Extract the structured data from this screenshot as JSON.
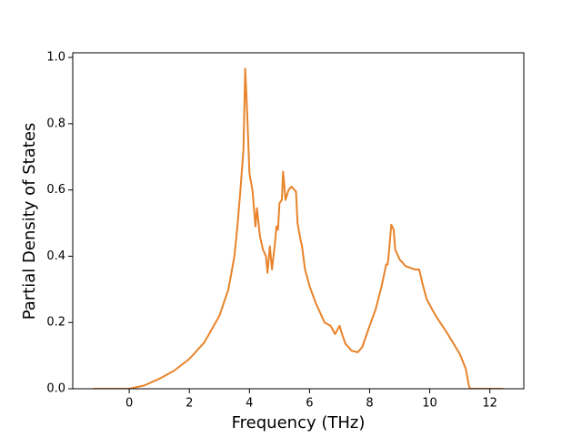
{
  "chart_data": {
    "type": "line",
    "xlabel": "Frequency (THz)",
    "ylabel": "Partial Density of States",
    "x": [
      -1.2,
      0,
      0.5,
      1,
      1.5,
      2,
      2.5,
      3,
      3.3,
      3.5,
      3.6,
      3.7,
      3.8,
      3.86,
      3.93,
      4.0,
      4.1,
      4.2,
      4.25,
      4.35,
      4.45,
      4.55,
      4.6,
      4.68,
      4.75,
      4.85,
      4.9,
      4.95,
      5.0,
      5.08,
      5.12,
      5.2,
      5.3,
      5.4,
      5.55,
      5.6,
      5.7,
      5.75,
      5.85,
      6.0,
      6.2,
      6.4,
      6.5,
      6.7,
      6.85,
      7.0,
      7.1,
      7.2,
      7.4,
      7.6,
      7.75,
      8.0,
      8.2,
      8.4,
      8.55,
      8.6,
      8.65,
      8.72,
      8.8,
      8.85,
      9.0,
      9.2,
      9.5,
      9.65,
      9.75,
      9.9,
      10.2,
      10.6,
      11.0,
      11.2,
      11.3,
      11.35,
      12.45
    ],
    "series": [
      {
        "color": "#e8832a",
        "values": [
          0,
          0,
          0.01,
          0.03,
          0.055,
          0.09,
          0.14,
          0.22,
          0.3,
          0.4,
          0.49,
          0.6,
          0.72,
          0.966,
          0.82,
          0.65,
          0.6,
          0.49,
          0.545,
          0.46,
          0.42,
          0.4,
          0.35,
          0.43,
          0.36,
          0.44,
          0.49,
          0.48,
          0.56,
          0.57,
          0.655,
          0.57,
          0.6,
          0.61,
          0.595,
          0.5,
          0.45,
          0.43,
          0.36,
          0.31,
          0.26,
          0.22,
          0.2,
          0.19,
          0.165,
          0.19,
          0.16,
          0.135,
          0.115,
          0.11,
          0.125,
          0.19,
          0.24,
          0.31,
          0.375,
          0.375,
          0.42,
          0.495,
          0.48,
          0.42,
          0.39,
          0.37,
          0.36,
          0.36,
          0.32,
          0.27,
          0.22,
          0.165,
          0.105,
          0.06,
          0.01,
          0,
          0
        ]
      }
    ],
    "xlim": [
      -1.88,
      13.13
    ],
    "ylim": [
      0,
      1.014
    ],
    "xticks": [
      0,
      2,
      4,
      6,
      8,
      10,
      12
    ],
    "yticks": [
      {
        "value": 0,
        "label": "0.0"
      },
      0.2,
      0.4,
      0.6,
      0.8,
      {
        "value": 1,
        "label": "1.0"
      }
    ]
  }
}
